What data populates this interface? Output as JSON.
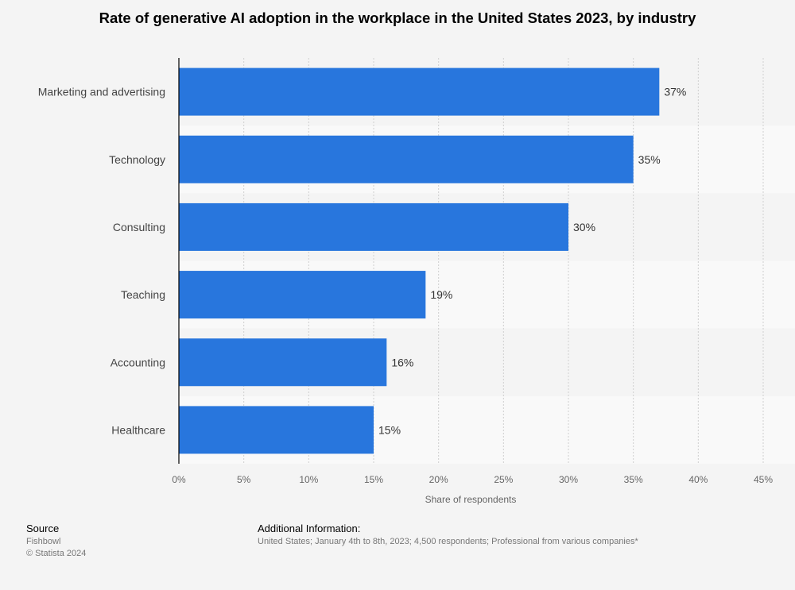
{
  "chart_data": {
    "type": "bar",
    "orientation": "horizontal",
    "title": "Rate of generative AI adoption in the workplace in the United States 2023, by industry",
    "categories": [
      "Marketing and advertising",
      "Technology",
      "Consulting",
      "Teaching",
      "Accounting",
      "Healthcare"
    ],
    "values": [
      37,
      35,
      30,
      19,
      16,
      15
    ],
    "data_labels": [
      "37%",
      "35%",
      "30%",
      "19%",
      "16%",
      "15%"
    ],
    "xlabel": "Share of respondents",
    "xlim": [
      0,
      45
    ],
    "xticks": [
      "0%",
      "5%",
      "10%",
      "15%",
      "20%",
      "25%",
      "30%",
      "35%",
      "40%",
      "45%"
    ],
    "grid": true,
    "bar_color": "#2876dd"
  },
  "footer": {
    "source_heading": "Source",
    "source": "Fishbowl",
    "copyright": "© Statista 2024",
    "info_heading": "Additional Information:",
    "info": "United States; January 4th to 8th, 2023; 4,500 respondents; Professional from various companies*"
  }
}
